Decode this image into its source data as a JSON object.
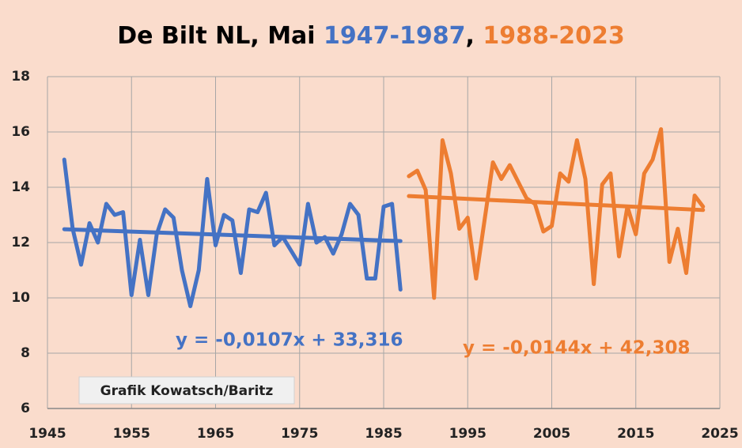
{
  "chart_data": {
    "type": "line",
    "title": {
      "parts": [
        {
          "text": "De Bilt NL, Mai ",
          "color": "#000000"
        },
        {
          "text": "1947-1987",
          "color": "#4472c4"
        },
        {
          "text": ", ",
          "color": "#000000"
        },
        {
          "text": "1988-2023",
          "color": "#ed7d31"
        }
      ]
    },
    "xlim": [
      1945,
      2025
    ],
    "xticks": [
      1945,
      1955,
      1965,
      1975,
      1985,
      1995,
      2005,
      2015,
      2025
    ],
    "ylim": [
      6,
      18
    ],
    "yticks": [
      6,
      8,
      10,
      12,
      14,
      16,
      18
    ],
    "grid": true,
    "series": [
      {
        "color": "#4472c4",
        "x": [
          1947,
          1948,
          1949,
          1950,
          1951,
          1952,
          1953,
          1954,
          1955,
          1956,
          1957,
          1958,
          1959,
          1960,
          1961,
          1962,
          1963,
          1964,
          1965,
          1966,
          1967,
          1968,
          1969,
          1970,
          1971,
          1972,
          1973,
          1974,
          1975,
          1976,
          1977,
          1978,
          1979,
          1980,
          1981,
          1982,
          1983,
          1984,
          1985,
          1986,
          1987
        ],
        "values": [
          15.0,
          12.5,
          11.2,
          12.7,
          12.0,
          13.4,
          13.0,
          13.1,
          10.1,
          12.1,
          10.1,
          12.3,
          13.2,
          12.9,
          11.0,
          9.7,
          11.0,
          14.3,
          11.9,
          13.0,
          12.8,
          10.9,
          13.2,
          13.1,
          13.8,
          11.9,
          12.2,
          11.7,
          11.2,
          13.4,
          12.0,
          12.2,
          11.6,
          12.3,
          13.4,
          13.0,
          10.7,
          10.7,
          13.3,
          13.4,
          10.3
        ],
        "trend": {
          "slope": -0.0107,
          "intercept": 33.316,
          "label": "y = -0,0107x + 33,316"
        }
      },
      {
        "color": "#ed7d31",
        "x": [
          1988,
          1989,
          1990,
          1991,
          1992,
          1993,
          1994,
          1995,
          1996,
          1997,
          1998,
          1999,
          2000,
          2001,
          2002,
          2003,
          2004,
          2005,
          2006,
          2007,
          2008,
          2009,
          2010,
          2011,
          2012,
          2013,
          2014,
          2015,
          2016,
          2017,
          2018,
          2019,
          2020,
          2021,
          2022,
          2023
        ],
        "values": [
          14.4,
          14.6,
          13.9,
          10.0,
          15.7,
          14.5,
          12.5,
          12.9,
          10.7,
          12.8,
          14.9,
          14.3,
          14.8,
          14.2,
          13.6,
          13.4,
          12.4,
          12.6,
          14.5,
          14.2,
          15.7,
          14.3,
          10.5,
          14.1,
          14.5,
          11.5,
          13.3,
          12.3,
          14.5,
          15.0,
          16.1,
          11.3,
          12.5,
          10.9,
          13.7,
          13.3
        ],
        "trend": {
          "slope": -0.0144,
          "intercept": 42.308,
          "label": "y = -0,0144x + 42,308"
        }
      }
    ],
    "note": "Grafik Kowatsch/Baritz"
  }
}
